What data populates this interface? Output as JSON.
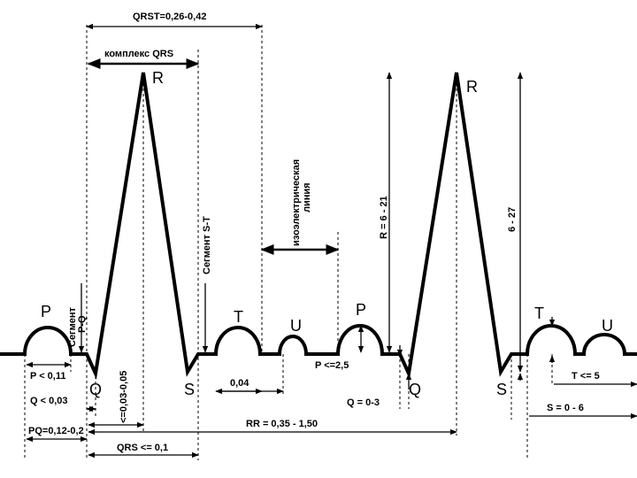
{
  "labels": {
    "qrst": "QRST=0,26-0,42",
    "qrs_complex": "комплекс QRS",
    "r1": "R",
    "r2": "R",
    "isoelectric": [
      "изоэлектрическая",
      "линия"
    ],
    "st_segment": "Сегмент S-T",
    "pq_segment": [
      "Сегмент",
      "P-Q"
    ],
    "r_amp": "R = 6 - 21",
    "r_amp2": "6 - 27",
    "p1": "P",
    "t1": "T",
    "u1": "U",
    "p2": "P",
    "t2": "T",
    "u2": "U",
    "q1": "Q",
    "s1": "S",
    "q2": "Q",
    "s2": "S",
    "p_dur": "P < 0,11",
    "q_dur": "Q < 0,03",
    "pq_dur": "PQ=0,12-0,2",
    "qrs_dur": "QRS <= 0,1",
    "interval_004": "0,04",
    "p_amp": "P <=2,5",
    "q_amp": "Q = 0-3",
    "rr": "RR = 0,35 - 1,50",
    "t_amp": "T <= 5",
    "s_amp": "S = 0 - 6",
    "intrinsic": "<=0,03-0,05"
  }
}
